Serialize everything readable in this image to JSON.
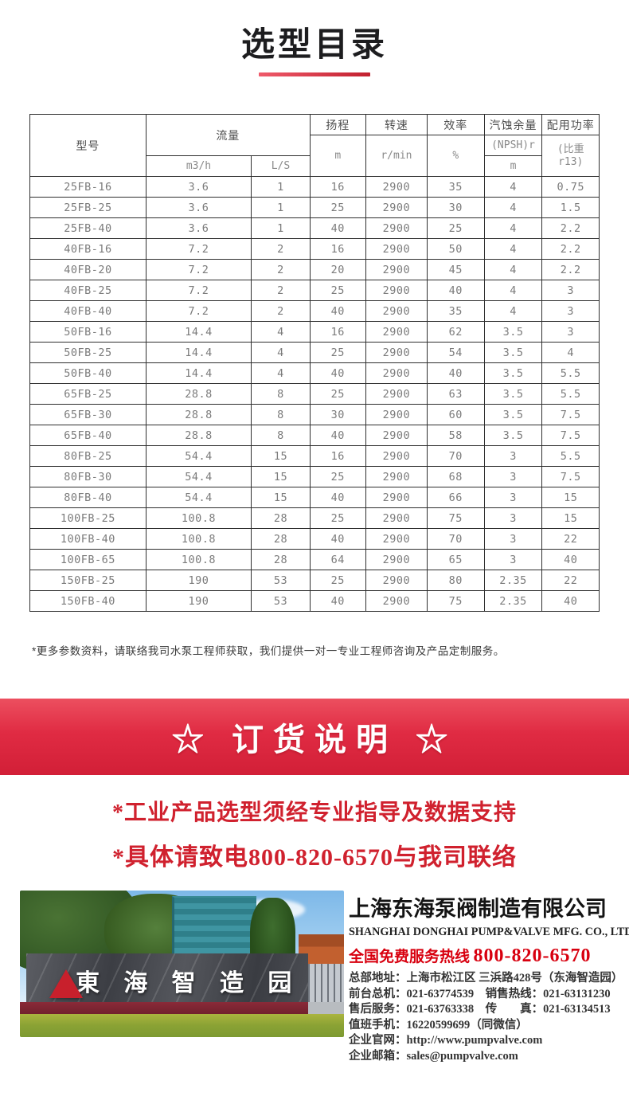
{
  "page": {
    "title": "选型目录",
    "footnote": "*更多参数资料，请联络我司水泵工程师获取，我们提供一对一专业工程师咨询及产品定制服务。"
  },
  "colors": {
    "accent_red": "#d0212e",
    "banner_gradient_top": "#ec4f5f",
    "banner_gradient_bottom": "#d21f37",
    "table_border": "#2f2f2f",
    "table_text": "#7b7b7b",
    "hotline_red": "#d8000f"
  },
  "table": {
    "header": {
      "model": "型号",
      "flow": "流量",
      "flow_m3h": "m3/h",
      "flow_ls": "L/S",
      "head": "扬程",
      "head_unit": "m",
      "speed": "转速",
      "speed_unit": "r/min",
      "efficiency": "效率",
      "efficiency_unit": "%",
      "npsh": "汽蚀余量",
      "npsh_sub": "(NPSH)r",
      "npsh_unit": "m",
      "power": "配用功率",
      "power_sub": "(比重 r13)"
    },
    "rows": [
      [
        "25FB-16",
        "3.6",
        "1",
        "16",
        "2900",
        "35",
        "4",
        "0.75"
      ],
      [
        "25FB-25",
        "3.6",
        "1",
        "25",
        "2900",
        "30",
        "4",
        "1.5"
      ],
      [
        "25FB-40",
        "3.6",
        "1",
        "40",
        "2900",
        "25",
        "4",
        "2.2"
      ],
      [
        "40FB-16",
        "7.2",
        "2",
        "16",
        "2900",
        "50",
        "4",
        "2.2"
      ],
      [
        "40FB-20",
        "7.2",
        "2",
        "20",
        "2900",
        "45",
        "4",
        "2.2"
      ],
      [
        "40FB-25",
        "7.2",
        "2",
        "25",
        "2900",
        "40",
        "4",
        "3"
      ],
      [
        "40FB-40",
        "7.2",
        "2",
        "40",
        "2900",
        "35",
        "4",
        "3"
      ],
      [
        "50FB-16",
        "14.4",
        "4",
        "16",
        "2900",
        "62",
        "3.5",
        "3"
      ],
      [
        "50FB-25",
        "14.4",
        "4",
        "25",
        "2900",
        "54",
        "3.5",
        "4"
      ],
      [
        "50FB-40",
        "14.4",
        "4",
        "40",
        "2900",
        "40",
        "3.5",
        "5.5"
      ],
      [
        "65FB-25",
        "28.8",
        "8",
        "25",
        "2900",
        "63",
        "3.5",
        "5.5"
      ],
      [
        "65FB-30",
        "28.8",
        "8",
        "30",
        "2900",
        "60",
        "3.5",
        "7.5"
      ],
      [
        "65FB-40",
        "28.8",
        "8",
        "40",
        "2900",
        "58",
        "3.5",
        "7.5"
      ],
      [
        "80FB-25",
        "54.4",
        "15",
        "16",
        "2900",
        "70",
        "3",
        "5.5"
      ],
      [
        "80FB-30",
        "54.4",
        "15",
        "25",
        "2900",
        "68",
        "3",
        "7.5"
      ],
      [
        "80FB-40",
        "54.4",
        "15",
        "40",
        "2900",
        "66",
        "3",
        "15"
      ],
      [
        "100FB-25",
        "100.8",
        "28",
        "25",
        "2900",
        "75",
        "3",
        "15"
      ],
      [
        "100FB-40",
        "100.8",
        "28",
        "40",
        "2900",
        "70",
        "3",
        "22"
      ],
      [
        "100FB-65",
        "100.8",
        "28",
        "64",
        "2900",
        "65",
        "3",
        "40"
      ],
      [
        "150FB-25",
        "190",
        "53",
        "25",
        "2900",
        "80",
        "2.35",
        "22"
      ],
      [
        "150FB-40",
        "190",
        "53",
        "40",
        "2900",
        "75",
        "2.35",
        "40"
      ]
    ]
  },
  "banner": {
    "text": "☆ 订货说明 ☆"
  },
  "notice": {
    "line1": "*工业产品选型须经专业指导及数据支持",
    "line2": "*具体请致电800-820-6570与我司联络"
  },
  "footer": {
    "photo_sign": "東 海 智 造 园",
    "company_cn": "上海东海泵阀制造有限公司",
    "company_en": "SHANGHAI DONGHAI PUMP&VALVE MFG. CO., LTD.",
    "hotline_label": "全国免费服务热线",
    "hotline_number": "800-820-6570",
    "contact_lines": [
      "总部地址：上海市松江区 三浜路428号（东海智造园）",
      "前台总机：021-63774539　销售热线：021-63131230",
      "售后服务：021-63763338　传　　真：021-63134513",
      "值班手机：16220599699（同微信）",
      "企业官网：http://www.pumpvalve.com",
      "企业邮箱：sales@pumpvalve.com"
    ]
  }
}
